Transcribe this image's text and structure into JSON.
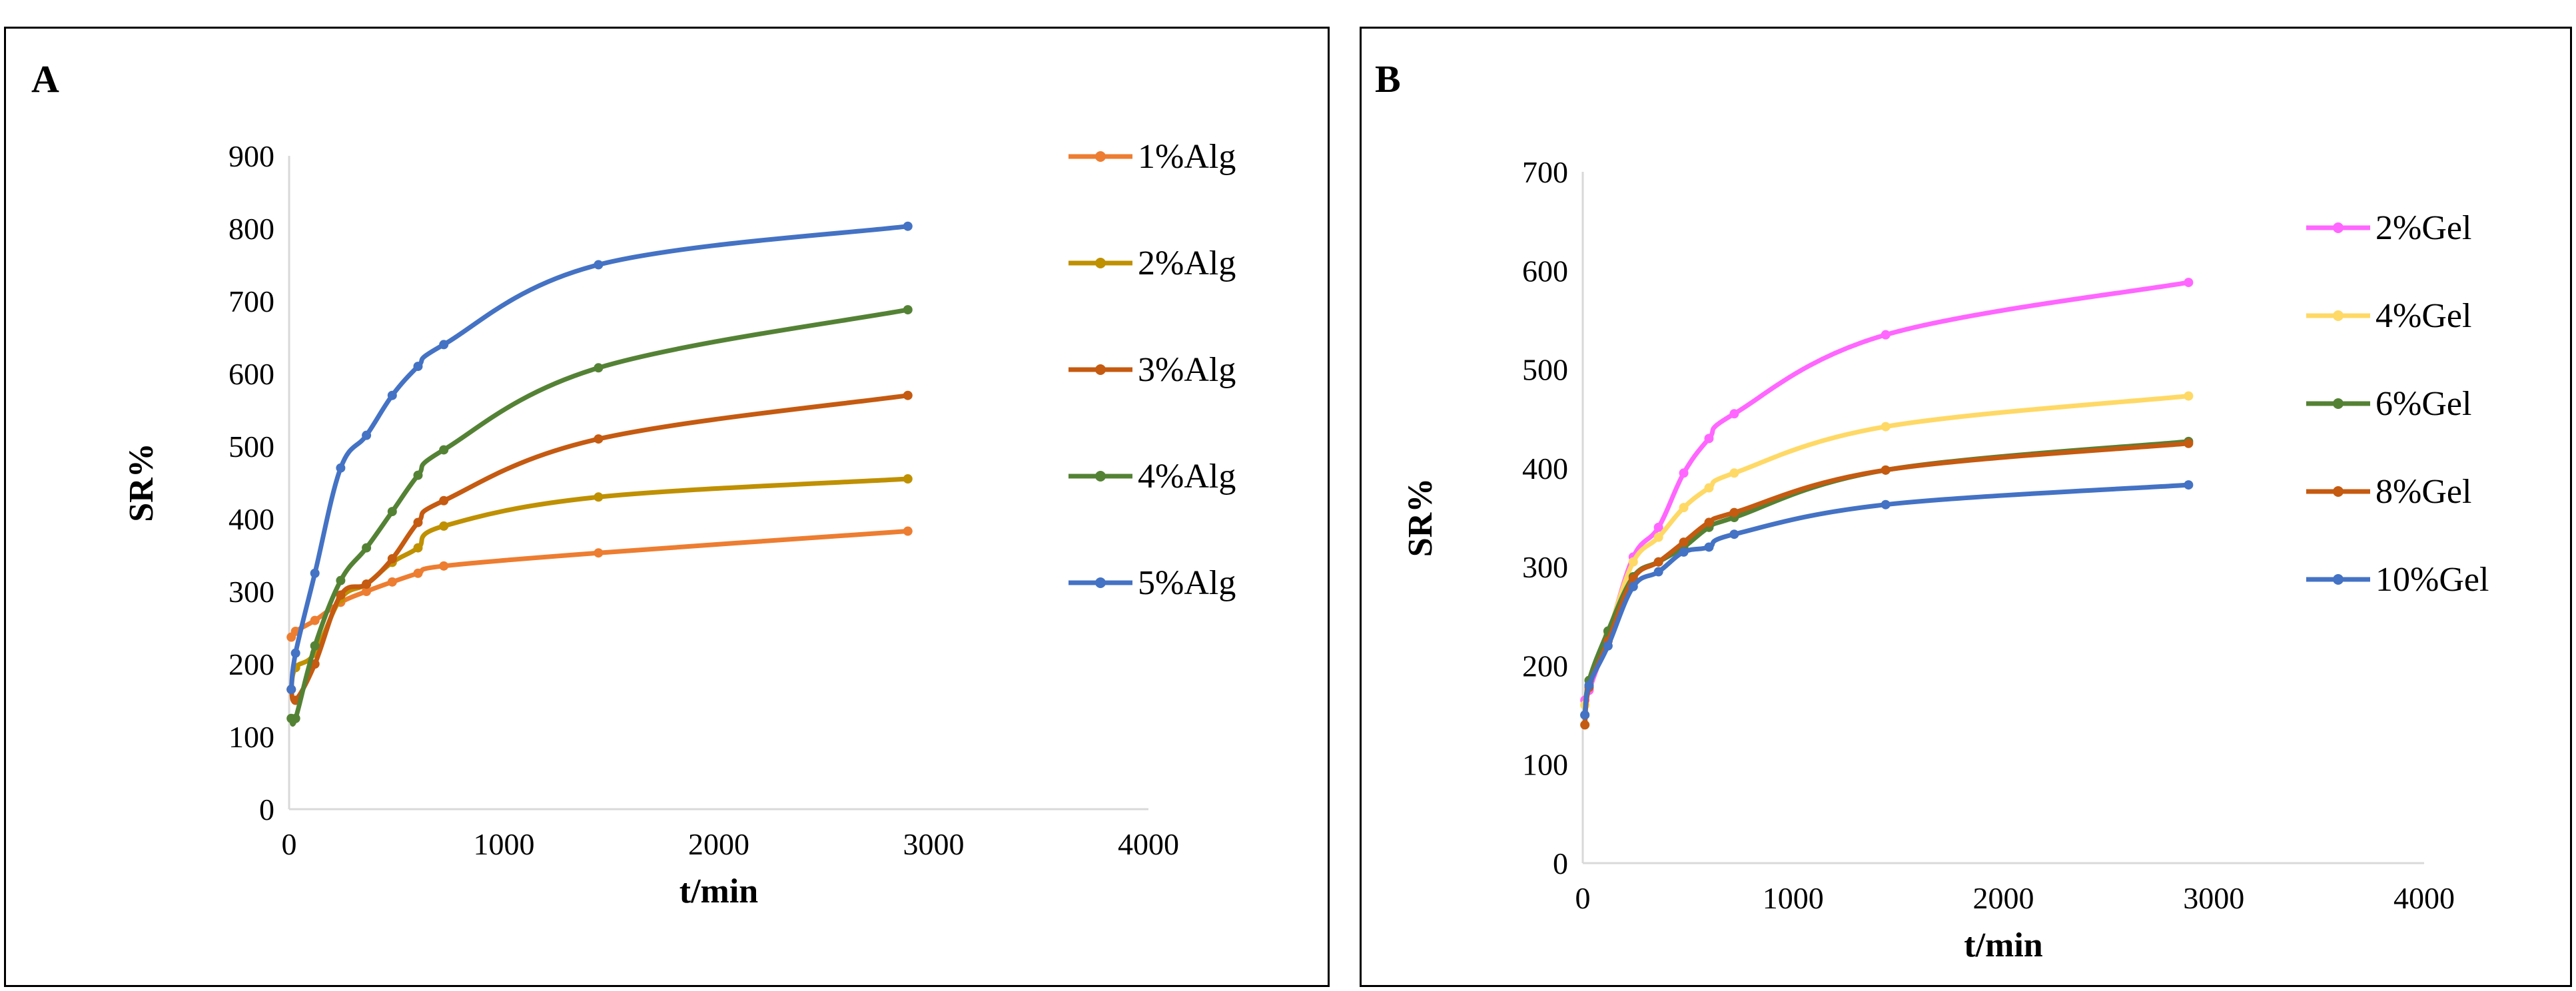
{
  "chart_data": [
    {
      "type": "line",
      "panel_label": "A",
      "xlabel": "t/min",
      "ylabel": "SR%",
      "xlim": [
        0,
        4000
      ],
      "ylim": [
        0,
        900
      ],
      "x_ticks": [
        "0",
        "1000",
        "2000",
        "3000",
        "4000"
      ],
      "y_ticks": [
        "0",
        "100",
        "200",
        "300",
        "400",
        "500",
        "600",
        "700",
        "800",
        "900"
      ],
      "grid": false,
      "legend_position": "right",
      "series": [
        {
          "name": "1%Alg",
          "color": "#ED7D31",
          "x": [
            10,
            30,
            120,
            240,
            360,
            480,
            600,
            720,
            1440,
            2880
          ],
          "y": [
            237,
            245,
            260,
            285,
            300,
            313,
            325,
            335,
            353,
            383
          ]
        },
        {
          "name": "2%Alg",
          "color": "#BF9000",
          "x": [
            10,
            30,
            120,
            240,
            360,
            480,
            600,
            720,
            1440,
            2880
          ],
          "y": [
            165,
            195,
            215,
            290,
            310,
            340,
            360,
            390,
            430,
            455
          ]
        },
        {
          "name": "3%Alg",
          "color": "#C55A11",
          "x": [
            10,
            30,
            120,
            240,
            360,
            480,
            600,
            720,
            1440,
            2880
          ],
          "y": [
            165,
            150,
            200,
            295,
            310,
            345,
            395,
            425,
            510,
            570
          ]
        },
        {
          "name": "4%Alg",
          "color": "#548235",
          "x": [
            10,
            30,
            120,
            240,
            360,
            480,
            600,
            720,
            1440,
            2880
          ],
          "y": [
            125,
            125,
            225,
            315,
            360,
            410,
            460,
            495,
            608,
            688
          ]
        },
        {
          "name": "5%Alg",
          "color": "#4472C4",
          "x": [
            10,
            30,
            120,
            240,
            360,
            480,
            600,
            720,
            1440,
            2880
          ],
          "y": [
            165,
            215,
            325,
            470,
            515,
            570,
            610,
            640,
            750,
            803
          ]
        }
      ]
    },
    {
      "type": "line",
      "panel_label": "B",
      "xlabel": "t/min",
      "ylabel": "SR%",
      "xlim": [
        0,
        4000
      ],
      "ylim": [
        0,
        700
      ],
      "x_ticks": [
        "0",
        "1000",
        "2000",
        "3000",
        "4000"
      ],
      "y_ticks": [
        "0",
        "100",
        "200",
        "300",
        "400",
        "500",
        "600",
        "700"
      ],
      "grid": false,
      "legend_position": "right",
      "series": [
        {
          "name": "2%Gel",
          "color": "#FF66FF",
          "x": [
            10,
            30,
            120,
            240,
            360,
            480,
            600,
            720,
            1440,
            2880
          ],
          "y": [
            165,
            175,
            230,
            310,
            340,
            395,
            430,
            455,
            535,
            588
          ]
        },
        {
          "name": "4%Gel",
          "color": "#FFD966",
          "x": [
            10,
            30,
            120,
            240,
            360,
            480,
            600,
            720,
            1440,
            2880
          ],
          "y": [
            160,
            180,
            232,
            305,
            330,
            360,
            380,
            395,
            442,
            473
          ]
        },
        {
          "name": "6%Gel",
          "color": "#548235",
          "x": [
            10,
            30,
            120,
            240,
            360,
            480,
            600,
            720,
            1440,
            2880
          ],
          "y": [
            150,
            185,
            235,
            290,
            305,
            320,
            340,
            350,
            398,
            427
          ]
        },
        {
          "name": "8%Gel",
          "color": "#C55A11",
          "x": [
            10,
            30,
            120,
            240,
            360,
            480,
            600,
            720,
            1440,
            2880
          ],
          "y": [
            140,
            178,
            225,
            288,
            305,
            325,
            345,
            355,
            398,
            425
          ]
        },
        {
          "name": "10%Gel",
          "color": "#4472C4",
          "x": [
            10,
            30,
            120,
            240,
            360,
            480,
            600,
            720,
            1440,
            2880
          ],
          "y": [
            150,
            180,
            220,
            280,
            295,
            315,
            320,
            333,
            363,
            383
          ]
        }
      ]
    }
  ]
}
